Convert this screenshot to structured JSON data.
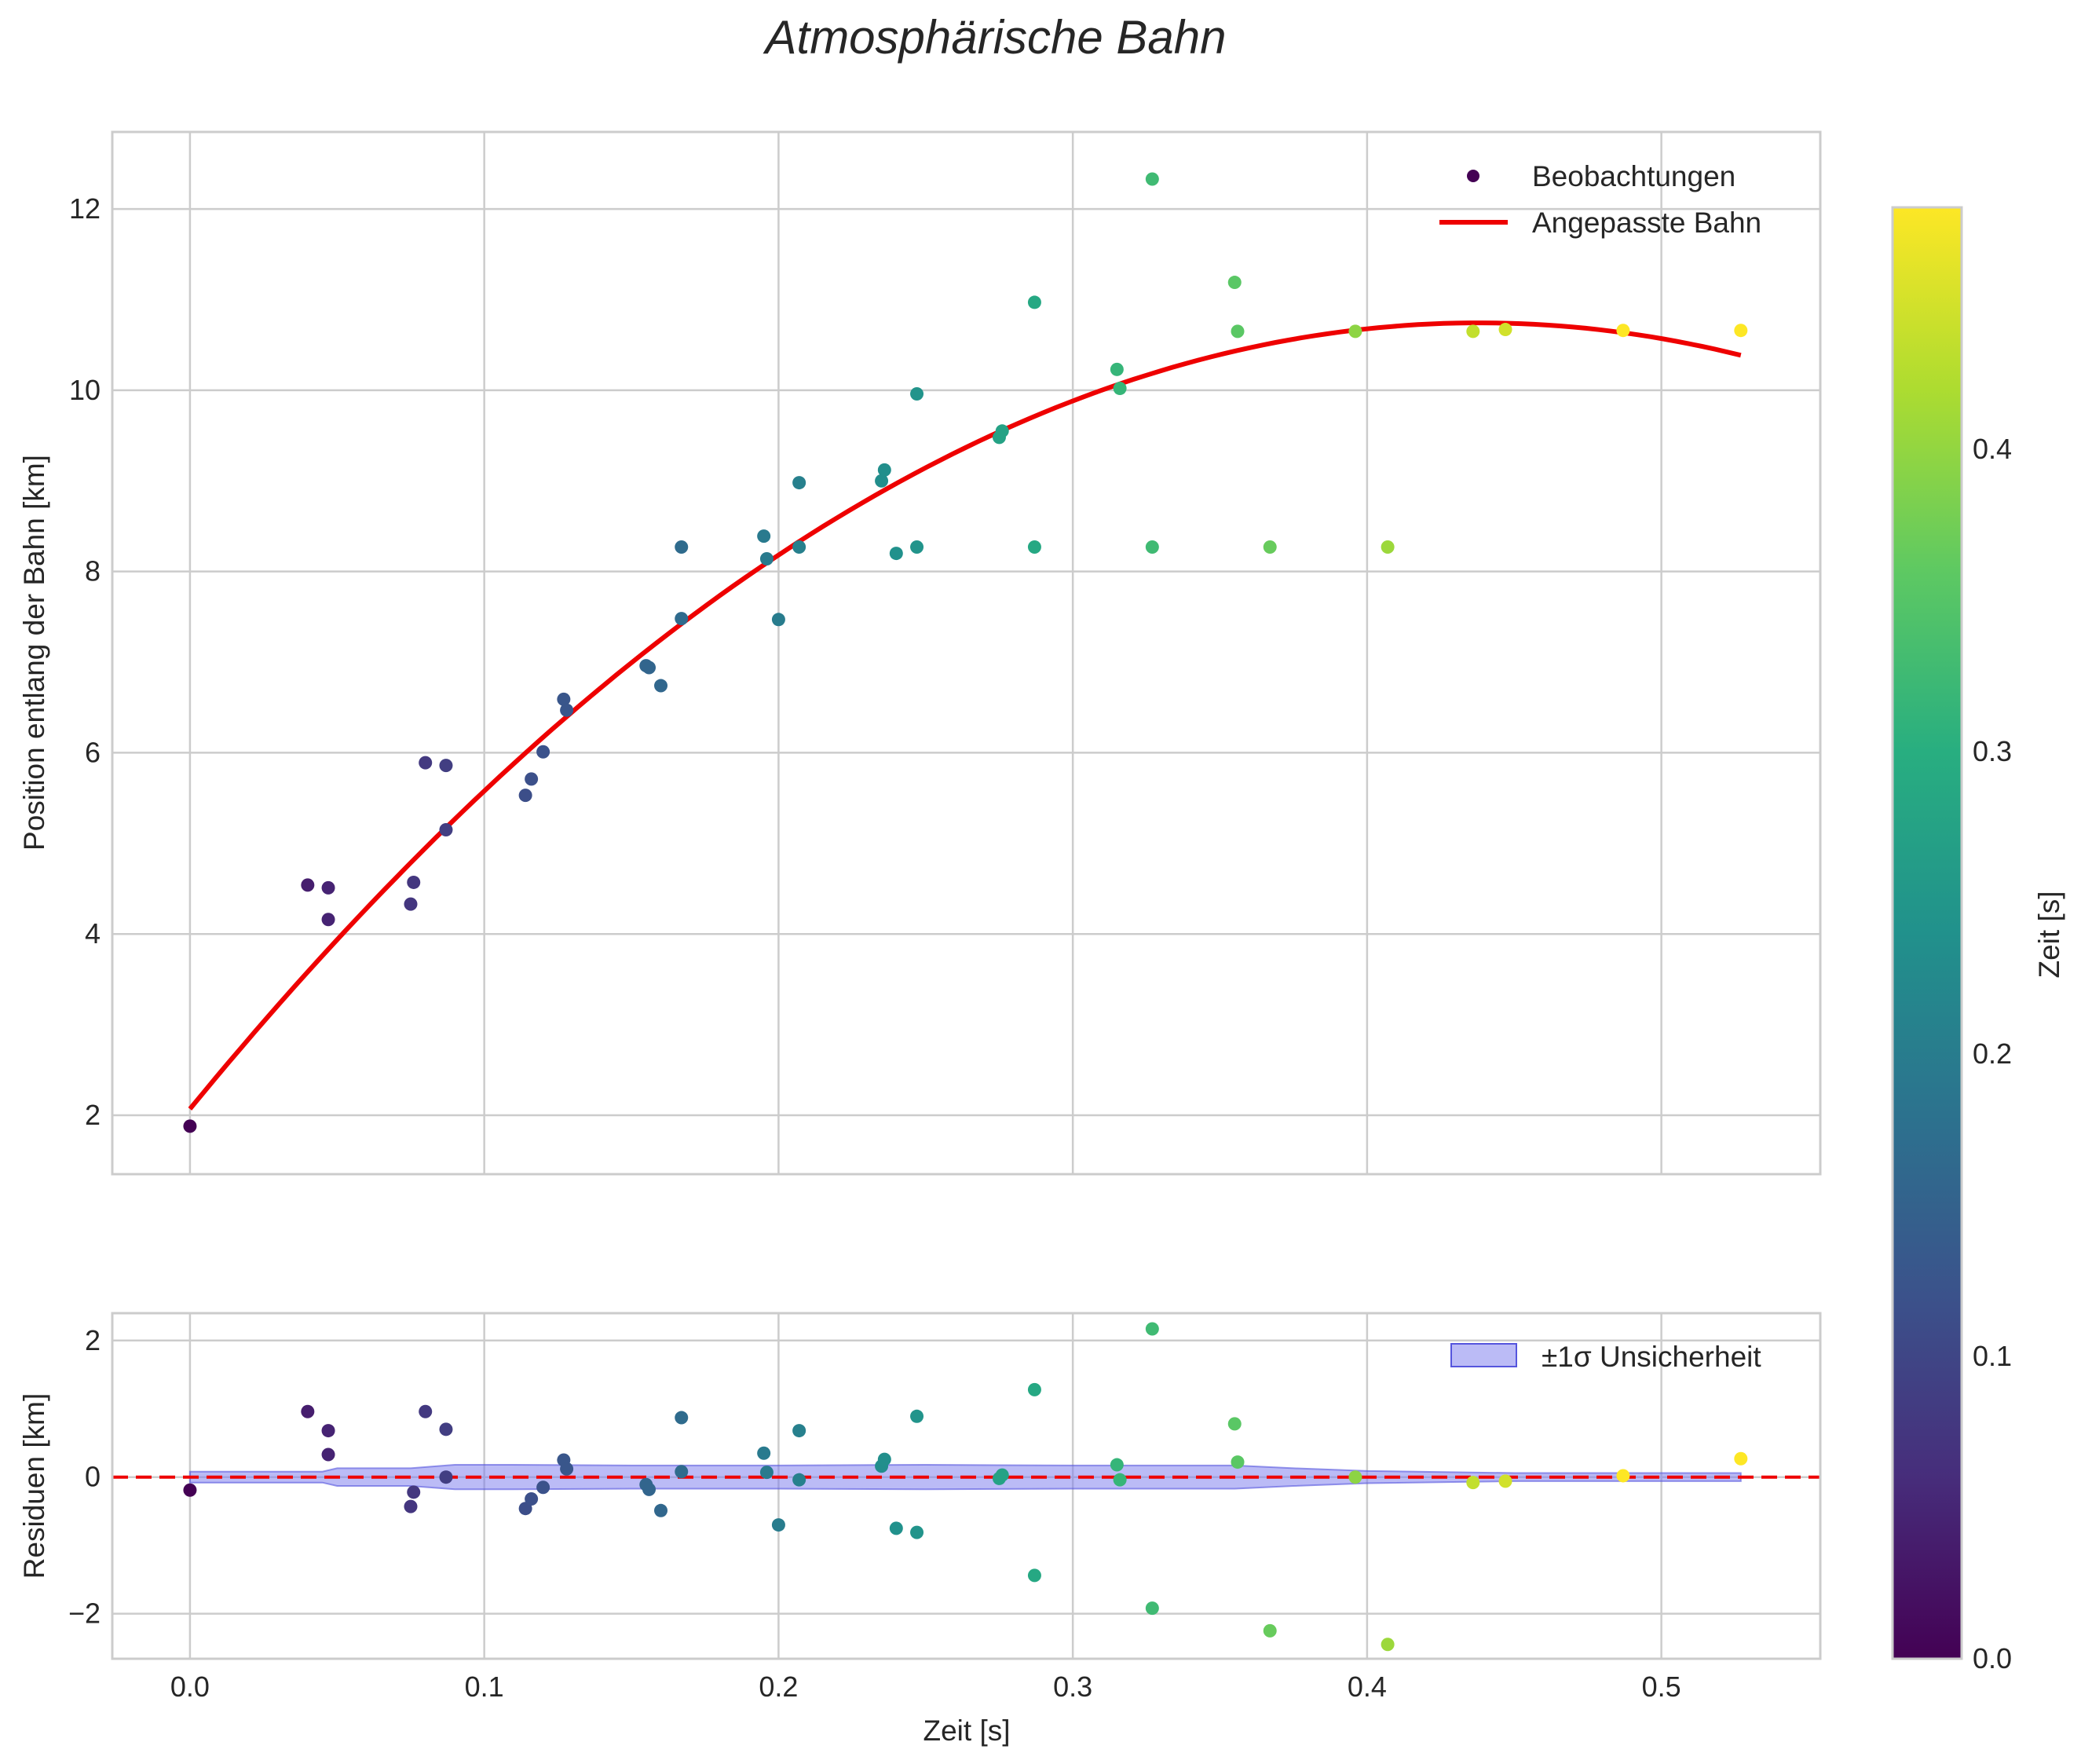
{
  "chart_data": [
    {
      "id": "main",
      "type": "scatter",
      "title": "Atmosphärische Bahn",
      "xlabel": "",
      "ylabel": "Position entlang der Bahn [km]",
      "xlim": [
        -0.0264,
        0.554
      ],
      "ylim": [
        1.35,
        12.85
      ],
      "xticks": [
        0.0,
        0.1,
        0.2,
        0.3,
        0.4,
        0.5
      ],
      "yticks": [
        2,
        4,
        6,
        8,
        10,
        12
      ],
      "grid": true,
      "legend": {
        "position": "top-right",
        "entries": [
          "Beobachtungen",
          "Angepasste Bahn"
        ]
      },
      "series": [
        {
          "name": "Beobachtungen",
          "kind": "scatter",
          "colormap": "viridis",
          "color_by": "x",
          "points": [
            [
              0.0,
              1.88
            ],
            [
              0.04,
              4.54
            ],
            [
              0.047,
              4.51
            ],
            [
              0.047,
              4.16
            ],
            [
              0.075,
              4.33
            ],
            [
              0.076,
              4.57
            ],
            [
              0.08,
              5.89
            ],
            [
              0.087,
              5.86
            ],
            [
              0.087,
              5.15
            ],
            [
              0.114,
              5.53
            ],
            [
              0.116,
              5.71
            ],
            [
              0.12,
              6.01
            ],
            [
              0.127,
              6.59
            ],
            [
              0.128,
              6.47
            ],
            [
              0.155,
              6.96
            ],
            [
              0.156,
              6.94
            ],
            [
              0.16,
              6.74
            ],
            [
              0.167,
              8.27
            ],
            [
              0.167,
              7.48
            ],
            [
              0.195,
              8.39
            ],
            [
              0.196,
              8.14
            ],
            [
              0.2,
              7.47
            ],
            [
              0.207,
              8.98
            ],
            [
              0.207,
              8.27
            ],
            [
              0.235,
              9.0
            ],
            [
              0.236,
              9.12
            ],
            [
              0.24,
              8.2
            ],
            [
              0.247,
              9.96
            ],
            [
              0.247,
              8.27
            ],
            [
              0.275,
              9.48
            ],
            [
              0.276,
              9.55
            ],
            [
              0.287,
              10.97
            ],
            [
              0.287,
              8.27
            ],
            [
              0.315,
              10.23
            ],
            [
              0.316,
              10.02
            ],
            [
              0.327,
              12.33
            ],
            [
              0.327,
              8.27
            ],
            [
              0.355,
              11.19
            ],
            [
              0.356,
              10.65
            ],
            [
              0.367,
              8.27
            ],
            [
              0.396,
              10.65
            ],
            [
              0.407,
              8.27
            ],
            [
              0.436,
              10.65
            ],
            [
              0.447,
              10.67
            ],
            [
              0.487,
              10.66
            ],
            [
              0.527,
              10.66
            ]
          ]
        },
        {
          "name": "Angepasste Bahn",
          "kind": "line",
          "color": "#ee0000",
          "model": "quadratic",
          "coefficients": {
            "a": 2.07,
            "b": 39.6,
            "c": -45.2
          },
          "x_range": [
            0.0,
            0.527
          ]
        }
      ],
      "colorbar": {
        "label": "Zeit [s]",
        "range": [
          0.0,
          0.48
        ],
        "ticks": [
          0.0,
          0.1,
          0.2,
          0.3,
          0.4
        ]
      }
    },
    {
      "id": "residuals",
      "type": "scatter",
      "xlabel": "Zeit [s]",
      "ylabel": "Residuen [km]",
      "xlim": [
        -0.0264,
        0.554
      ],
      "ylim": [
        -2.66,
        2.4
      ],
      "xticks": [
        0.0,
        0.1,
        0.2,
        0.3,
        0.4,
        0.5
      ],
      "yticks": [
        -2,
        0,
        2
      ],
      "grid": true,
      "reference_line": {
        "y": 0,
        "color": "#ee0000",
        "style": "dashed"
      },
      "legend": {
        "position": "top-right",
        "entries": [
          "±1σ Unsicherheit"
        ]
      },
      "uncertainty_band": {
        "label": "±1σ Unsicherheit",
        "color": "#7777ee",
        "points": [
          [
            0.0,
            0.08
          ],
          [
            0.045,
            0.08
          ],
          [
            0.05,
            0.13
          ],
          [
            0.075,
            0.13
          ],
          [
            0.09,
            0.18
          ],
          [
            0.11,
            0.18
          ],
          [
            0.15,
            0.17
          ],
          [
            0.2,
            0.17
          ],
          [
            0.25,
            0.18
          ],
          [
            0.3,
            0.17
          ],
          [
            0.355,
            0.17
          ],
          [
            0.375,
            0.13
          ],
          [
            0.4,
            0.09
          ],
          [
            0.45,
            0.06
          ],
          [
            0.527,
            0.06
          ]
        ]
      },
      "series": [
        {
          "name": "Residuen",
          "kind": "scatter",
          "colormap": "viridis",
          "color_by": "x",
          "points": [
            [
              0.0,
              -0.19
            ],
            [
              0.04,
              0.96
            ],
            [
              0.047,
              0.68
            ],
            [
              0.047,
              0.33
            ],
            [
              0.075,
              -0.43
            ],
            [
              0.076,
              -0.22
            ],
            [
              0.08,
              0.96
            ],
            [
              0.087,
              0.7
            ],
            [
              0.087,
              0.0
            ],
            [
              0.114,
              -0.46
            ],
            [
              0.116,
              -0.32
            ],
            [
              0.12,
              -0.15
            ],
            [
              0.127,
              0.25
            ],
            [
              0.128,
              0.12
            ],
            [
              0.155,
              -0.11
            ],
            [
              0.156,
              -0.18
            ],
            [
              0.16,
              -0.49
            ],
            [
              0.167,
              0.87
            ],
            [
              0.167,
              0.08
            ],
            [
              0.195,
              0.35
            ],
            [
              0.196,
              0.07
            ],
            [
              0.2,
              -0.7
            ],
            [
              0.207,
              0.68
            ],
            [
              0.207,
              -0.04
            ],
            [
              0.235,
              0.16
            ],
            [
              0.236,
              0.26
            ],
            [
              0.24,
              -0.75
            ],
            [
              0.247,
              0.89
            ],
            [
              0.247,
              -0.81
            ],
            [
              0.275,
              -0.02
            ],
            [
              0.276,
              0.03
            ],
            [
              0.287,
              1.28
            ],
            [
              0.287,
              -1.44
            ],
            [
              0.315,
              0.18
            ],
            [
              0.316,
              -0.04
            ],
            [
              0.327,
              2.17
            ],
            [
              0.327,
              -1.92
            ],
            [
              0.355,
              0.78
            ],
            [
              0.356,
              0.22
            ],
            [
              0.367,
              -2.25
            ],
            [
              0.396,
              0.0
            ],
            [
              0.407,
              -2.45
            ],
            [
              0.436,
              -0.08
            ],
            [
              0.447,
              -0.06
            ],
            [
              0.487,
              0.02
            ],
            [
              0.527,
              0.27
            ]
          ]
        }
      ]
    }
  ]
}
